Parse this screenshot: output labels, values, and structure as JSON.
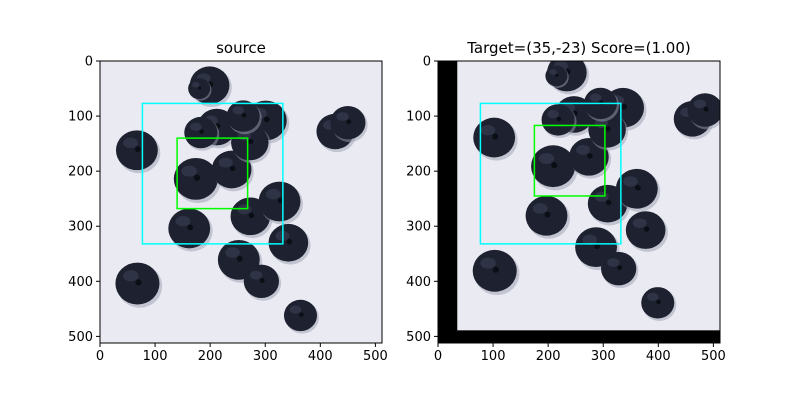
{
  "chart_data": [
    {
      "type": "image",
      "title": "source",
      "x_ticks": [
        0,
        100,
        200,
        300,
        400,
        500
      ],
      "y_ticks": [
        0,
        100,
        200,
        300,
        400,
        500
      ],
      "xlim": [
        0,
        512
      ],
      "ylim": [
        512,
        0
      ],
      "rectangles": [
        {
          "name": "template-region",
          "color": "#00ffff",
          "x": 77,
          "y": 77,
          "w": 255,
          "h": 255
        },
        {
          "name": "match-region",
          "color": "#00ff00",
          "x": 140,
          "y": 140,
          "w": 128,
          "h": 128
        }
      ],
      "berries": [
        [
          199,
          44,
          36
        ],
        [
          67,
          162,
          38
        ],
        [
          212,
          120,
          35
        ],
        [
          301,
          108,
          38
        ],
        [
          174,
          214,
          40
        ],
        [
          239,
          197,
          36
        ],
        [
          272,
          148,
          34
        ],
        [
          162,
          304,
          38
        ],
        [
          273,
          282,
          36
        ],
        [
          326,
          255,
          38
        ],
        [
          252,
          361,
          38
        ],
        [
          293,
          400,
          32
        ],
        [
          342,
          330,
          36
        ],
        [
          427,
          128,
          34
        ],
        [
          450,
          112,
          32
        ],
        [
          68,
          404,
          40
        ],
        [
          364,
          462,
          30
        ],
        [
          183,
          130,
          30
        ],
        [
          260,
          100,
          30
        ],
        [
          180,
          50,
          20
        ]
      ]
    },
    {
      "type": "image",
      "title": "Target=(35,-23) Score=(1.00)",
      "x_ticks": [
        0,
        100,
        200,
        300,
        400,
        500
      ],
      "y_ticks": [
        0,
        100,
        200,
        300,
        400,
        500
      ],
      "xlim": [
        0,
        512
      ],
      "ylim": [
        512,
        0
      ],
      "shift": {
        "dx": 35,
        "dy": -23
      },
      "rectangles": [
        {
          "name": "template-region",
          "color": "#00ffff",
          "x": 77,
          "y": 77,
          "w": 255,
          "h": 255
        },
        {
          "name": "match-region",
          "color": "#00ff00",
          "x": 175,
          "y": 117,
          "w": 128,
          "h": 128
        }
      ]
    }
  ],
  "colors": {
    "background": "#eaeaf2",
    "berry": "#1e2230",
    "berry_highlight": "#3a3f55",
    "padding": "#000000"
  }
}
